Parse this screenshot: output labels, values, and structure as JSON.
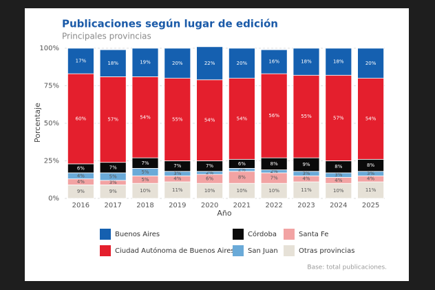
{
  "chart_data": {
    "type": "stacked_bar",
    "title": "Publicaciones según lugar de edición",
    "subtitle": "Principales provincias",
    "x_label": "Año",
    "y_label": "Porcentaje",
    "footnote": "Base: total publicaciones.",
    "categories": [
      "2016",
      "2017",
      "2018",
      "2019",
      "2020",
      "2021",
      "2022",
      "2023",
      "2024",
      "2025"
    ],
    "ylim": [
      0,
      100
    ],
    "yticks": [
      {
        "value": 0,
        "label": "0%"
      },
      {
        "value": 25,
        "label": "25%"
      },
      {
        "value": 50,
        "label": "50%"
      },
      {
        "value": 75,
        "label": "75%"
      },
      {
        "value": 100,
        "label": "100%"
      }
    ],
    "grid": true,
    "series": [
      {
        "name": "Buenos Aires",
        "color": "#1560b0",
        "values": [
          17,
          18,
          19,
          20,
          22,
          20,
          16,
          18,
          18,
          20
        ],
        "value_labels": [
          "17%",
          "18%",
          "19%",
          "20%",
          "22%",
          "20%",
          "16%",
          "18%",
          "18%",
          "20%"
        ]
      },
      {
        "name": "Ciudad Autónoma de Buenos Aires",
        "color": "#e41f2d",
        "values": [
          60,
          57,
          54,
          55,
          54,
          54,
          56,
          55,
          57,
          54
        ],
        "value_labels": [
          "60%",
          "57%",
          "54%",
          "55%",
          "54%",
          "54%",
          "56%",
          "55%",
          "57%",
          "54%"
        ]
      },
      {
        "name": "Córdoba",
        "color": "#0a0a0a",
        "values": [
          6,
          7,
          7,
          7,
          7,
          6,
          8,
          9,
          8,
          8
        ],
        "value_labels": [
          "6%",
          "7%",
          "7%",
          "7%",
          "7%",
          "6%",
          "8%",
          "9%",
          "8%",
          "8%"
        ]
      },
      {
        "name": "San Juan",
        "color": "#6aaad8",
        "values": [
          4,
          5,
          5,
          3,
          2,
          2,
          2,
          3,
          3,
          3
        ],
        "value_labels": [
          "4%",
          "5%",
          "5%",
          "3%",
          "2%",
          "2%",
          "2%",
          "3%",
          "3%",
          "3%"
        ]
      },
      {
        "name": "Santa Fe",
        "color": "#f2a3a3",
        "values": [
          4,
          3,
          5,
          4,
          6,
          8,
          7,
          4,
          4,
          4
        ],
        "value_labels": [
          "4%",
          "3%",
          "5%",
          "4%",
          "6%",
          "8%",
          "7%",
          "4%",
          "4%",
          "4%"
        ]
      },
      {
        "name": "Otras provincias",
        "color": "#e6e1d7",
        "values": [
          9,
          9,
          10,
          11,
          10,
          10,
          10,
          11,
          10,
          11
        ],
        "value_labels": [
          "9%",
          "9%",
          "10%",
          "11%",
          "10%",
          "10%",
          "10%",
          "11%",
          "10%",
          "11%"
        ]
      }
    ]
  }
}
